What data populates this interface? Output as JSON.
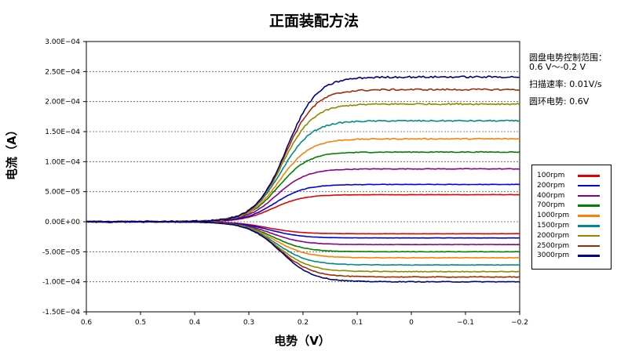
{
  "chart_data": {
    "type": "line",
    "title": "正面装配方法",
    "xlabel": "电势（V）",
    "ylabel": "电流（A）",
    "xlim": [
      0.6,
      -0.2
    ],
    "ylim": [
      -0.00015,
      0.0003
    ],
    "x_ticks": [
      "0.6",
      "0.5",
      "0.4",
      "0.3",
      "0.2",
      "0.1",
      "0",
      "−0.1",
      "−0.2"
    ],
    "y_ticks": [
      "3.00E−04",
      "2.50E−04",
      "2.00E−04",
      "1.50E−04",
      "1.00E−04",
      "5.00E−05",
      "0.00E+00",
      "-5.00E−05",
      "-1.00E−04",
      "-1.50E−04"
    ],
    "grid": "horizontal dotted",
    "legend_position": "right",
    "annotations": [
      "圆盘电势控制范围：\n0.6 V～-0.2 V",
      "扫描速率: 0.01V/s",
      "圆环电势:  0.6V"
    ],
    "series": [
      {
        "name": "100rpm",
        "color": "#e00000",
        "disk_limit": 4.5e-05,
        "ring_limit": -2e-05
      },
      {
        "name": "200rpm",
        "color": "#0000e0",
        "disk_limit": 6.2e-05,
        "ring_limit": -2.7e-05
      },
      {
        "name": "400rpm",
        "color": "#8a008a",
        "disk_limit": 8.8e-05,
        "ring_limit": -3.8e-05
      },
      {
        "name": "700rpm",
        "color": "#008000",
        "disk_limit": 0.000116,
        "ring_limit": -5e-05
      },
      {
        "name": "1000rpm",
        "color": "#ff7f00",
        "disk_limit": 0.000138,
        "ring_limit": -6e-05
      },
      {
        "name": "1500rpm",
        "color": "#008b8b",
        "disk_limit": 0.000168,
        "ring_limit": -7.2e-05
      },
      {
        "name": "2000rpm",
        "color": "#8b8b00",
        "disk_limit": 0.000196,
        "ring_limit": -8.3e-05
      },
      {
        "name": "2500rpm",
        "color": "#a52a00",
        "disk_limit": 0.00022,
        "ring_limit": -9.2e-05
      },
      {
        "name": "3000rpm",
        "color": "#000080",
        "disk_limit": 0.000241,
        "ring_limit": -0.0001
      }
    ]
  }
}
